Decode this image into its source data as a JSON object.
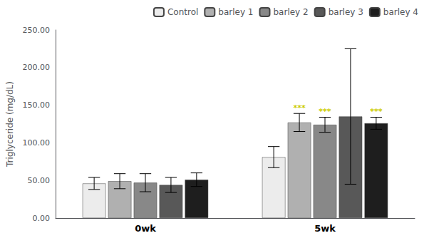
{
  "chart_data": {
    "type": "bar",
    "categories": [
      "0wk",
      "5wk"
    ],
    "series": [
      {
        "name": "Control",
        "color": "#ececec",
        "values": [
          46,
          81
        ],
        "errors": [
          8,
          14
        ]
      },
      {
        "name": "barley 1",
        "color": "#b0b0b0",
        "values": [
          49,
          127
        ],
        "errors": [
          10,
          12
        ]
      },
      {
        "name": "barley 2",
        "color": "#888888",
        "values": [
          47,
          124
        ],
        "errors": [
          12,
          10
        ]
      },
      {
        "name": "barley 3",
        "color": "#585858",
        "values": [
          44,
          135
        ],
        "errors": [
          10,
          90
        ]
      },
      {
        "name": "barley 4",
        "color": "#1e1e1e",
        "values": [
          51,
          126
        ],
        "errors": [
          9,
          8
        ]
      }
    ],
    "ylabel": "Triglyceride (mg/dL)",
    "ylim": [
      0,
      250
    ],
    "yticks": [
      {
        "value": 0,
        "label": "0.00"
      },
      {
        "value": 50,
        "label": "50.00"
      },
      {
        "value": 100,
        "label": "100.00"
      },
      {
        "value": 150,
        "label": "150.00"
      },
      {
        "value": 200,
        "label": "200.00"
      },
      {
        "value": 250,
        "label": "250.00"
      }
    ],
    "annotations": [
      {
        "text": "***",
        "series": "barley 1",
        "category": "5wk",
        "color": "#cccc00"
      },
      {
        "text": "***",
        "series": "barley 2",
        "category": "5wk",
        "color": "#cccc00"
      },
      {
        "text": "***",
        "series": "barley 4",
        "category": "5wk",
        "color": "#cccc00"
      }
    ],
    "legend": "upper right",
    "grid": false
  }
}
